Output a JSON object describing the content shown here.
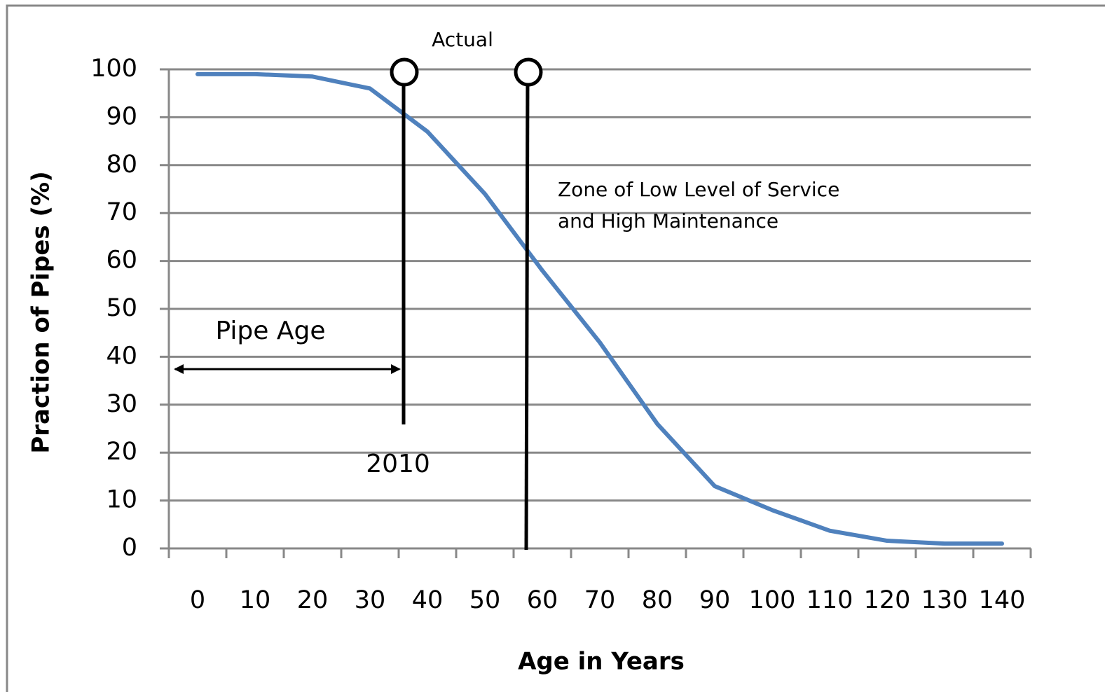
{
  "chart_data": {
    "type": "line",
    "xlabel": "Age in  Years",
    "ylabel": "Praction of Pipes (%)",
    "categories": [
      "0",
      "10",
      "20",
      "30",
      "40",
      "50",
      "60",
      "70",
      "80",
      "90",
      "100",
      "110",
      "120",
      "130",
      "140"
    ],
    "series": [
      {
        "name": null,
        "color": "#4f81bd",
        "values": [
          99,
          99,
          98.5,
          96,
          87,
          74,
          58,
          43,
          26,
          13,
          8,
          3.7,
          1.6,
          1,
          1
        ]
      }
    ],
    "ylim": [
      0,
      100
    ],
    "yticks": [
      0,
      10,
      20,
      30,
      40,
      50,
      60,
      70,
      80,
      90,
      100
    ],
    "grid": true,
    "annotations": [
      "Actual",
      "Zone of Low Level of Service",
      "and High Maintenance",
      "Pipe Age",
      "2010"
    ]
  }
}
